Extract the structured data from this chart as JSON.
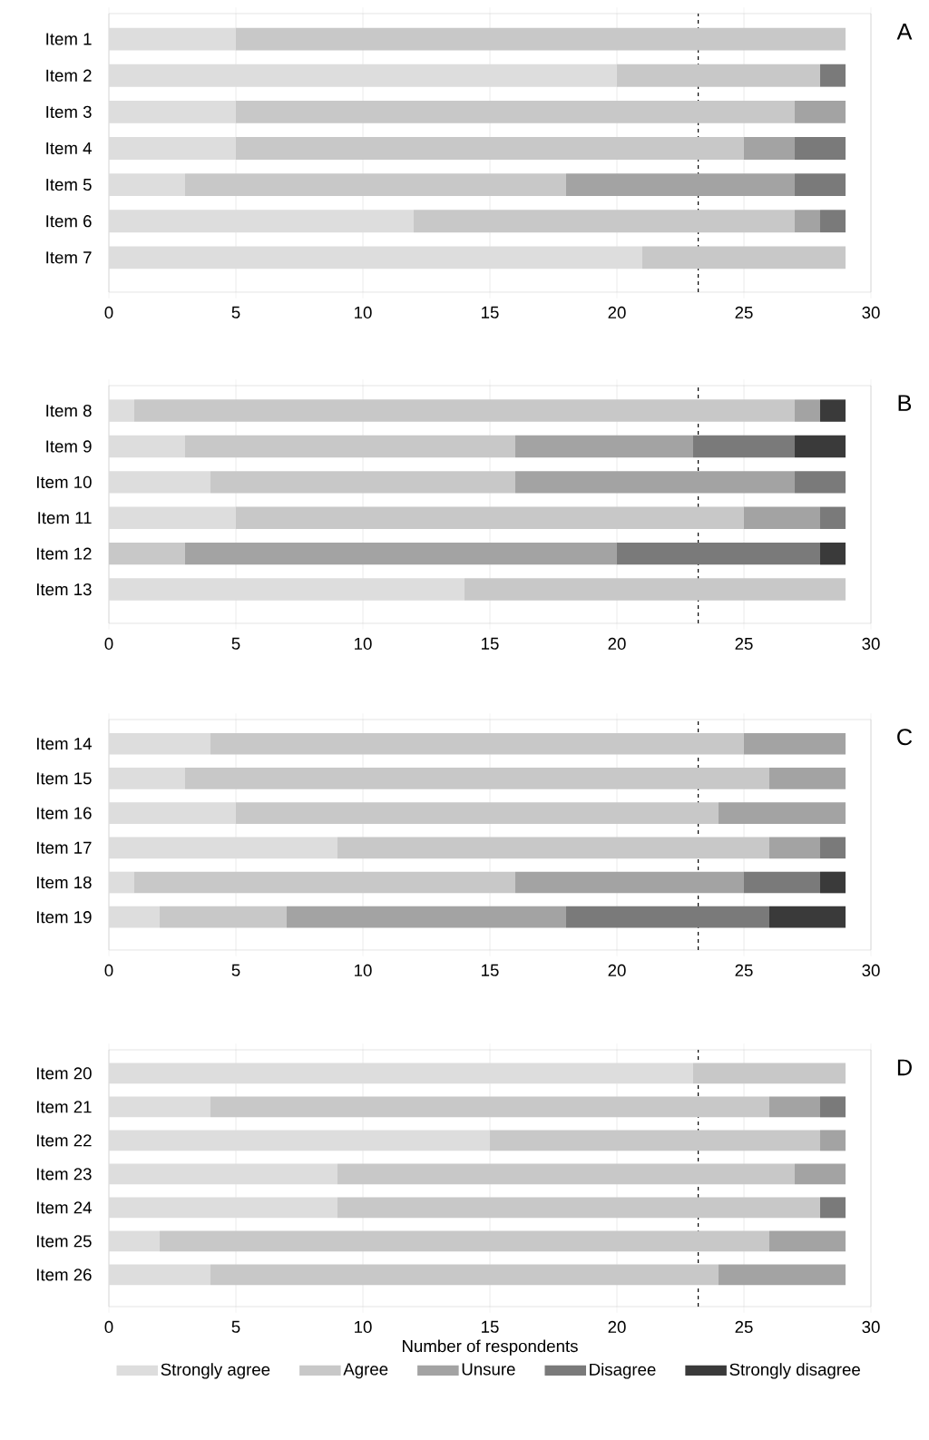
{
  "chart_data": [
    {
      "type": "bar",
      "orientation": "horizontal",
      "stacked": true,
      "categories": [
        "Item 1",
        "Item 2",
        "Item 3",
        "Item 4",
        "Item 5",
        "Item 6",
        "Item 7"
      ],
      "xlim": [
        0,
        30
      ],
      "xticks": [
        0,
        5,
        10,
        15,
        20,
        25,
        30
      ],
      "grid": "x",
      "annotations": [
        "A"
      ],
      "ref_lines": [
        {
          "axis": "x",
          "value": 23.2,
          "color": "#000000",
          "line_style": "dashed"
        }
      ],
      "series": [
        {
          "color": "#dddddd",
          "values": [
            5,
            20,
            5,
            5,
            3,
            12,
            21
          ]
        },
        {
          "color": "#c8c8c8",
          "values": [
            24,
            8,
            22,
            20,
            15,
            15,
            8
          ]
        },
        {
          "color": "#a3a3a3",
          "values": [
            0,
            0,
            2,
            2,
            9,
            1,
            0
          ]
        },
        {
          "color": "#7a7a7a",
          "values": [
            0,
            1,
            0,
            2,
            2,
            1,
            0
          ]
        },
        {
          "color": "#3a3a3a",
          "values": [
            0,
            0,
            0,
            0,
            0,
            0,
            0
          ]
        }
      ]
    },
    {
      "type": "bar",
      "orientation": "horizontal",
      "stacked": true,
      "categories": [
        "Item 8",
        "Item 9",
        "Item 10",
        "Item 11",
        "Item 12",
        "Item 13"
      ],
      "xlim": [
        0,
        30
      ],
      "xticks": [
        0,
        5,
        10,
        15,
        20,
        25,
        30
      ],
      "grid": "x",
      "annotations": [
        "B"
      ],
      "ref_lines": [
        {
          "axis": "x",
          "value": 23.2,
          "color": "#000000",
          "line_style": "dashed"
        }
      ],
      "series": [
        {
          "color": "#dddddd",
          "values": [
            1,
            3,
            4,
            5,
            0,
            14
          ]
        },
        {
          "color": "#c8c8c8",
          "values": [
            26,
            13,
            12,
            20,
            3,
            15
          ]
        },
        {
          "color": "#a3a3a3",
          "values": [
            1,
            7,
            11,
            3,
            17,
            0
          ]
        },
        {
          "color": "#7a7a7a",
          "values": [
            0,
            4,
            2,
            1,
            8,
            0
          ]
        },
        {
          "color": "#3a3a3a",
          "values": [
            1,
            2,
            0,
            0,
            1,
            0
          ]
        }
      ]
    },
    {
      "type": "bar",
      "orientation": "horizontal",
      "stacked": true,
      "categories": [
        "Item 14",
        "Item 15",
        "Item 16",
        "Item 17",
        "Item 18",
        "Item 19"
      ],
      "xlim": [
        0,
        30
      ],
      "xticks": [
        0,
        5,
        10,
        15,
        20,
        25,
        30
      ],
      "grid": "x",
      "annotations": [
        "C"
      ],
      "ref_lines": [
        {
          "axis": "x",
          "value": 23.2,
          "color": "#000000",
          "line_style": "dashed"
        }
      ],
      "series": [
        {
          "color": "#dddddd",
          "values": [
            4,
            3,
            5,
            9,
            1,
            2
          ]
        },
        {
          "color": "#c8c8c8",
          "values": [
            21,
            23,
            19,
            17,
            15,
            5
          ]
        },
        {
          "color": "#a3a3a3",
          "values": [
            4,
            3,
            5,
            2,
            9,
            11
          ]
        },
        {
          "color": "#7a7a7a",
          "values": [
            0,
            0,
            0,
            1,
            3,
            8
          ]
        },
        {
          "color": "#3a3a3a",
          "values": [
            0,
            0,
            0,
            0,
            1,
            3
          ]
        }
      ]
    },
    {
      "type": "bar",
      "orientation": "horizontal",
      "stacked": true,
      "categories": [
        "Item 20",
        "Item 21",
        "Item 22",
        "Item 23",
        "Item 24",
        "Item 25",
        "Item 26"
      ],
      "xlim": [
        0,
        30
      ],
      "xticks": [
        0,
        5,
        10,
        15,
        20,
        25,
        30
      ],
      "grid": "x",
      "annotations": [
        "D"
      ],
      "xlabel": "Number of respondents",
      "legend": "bottom",
      "ref_lines": [
        {
          "axis": "x",
          "value": 23.2,
          "color": "#000000",
          "line_style": "dashed"
        }
      ],
      "series": [
        {
          "name": "Strongly agree",
          "color": "#dddddd",
          "values": [
            23,
            4,
            15,
            9,
            9,
            2,
            4
          ]
        },
        {
          "name": "Agree",
          "color": "#c8c8c8",
          "values": [
            6,
            22,
            13,
            18,
            19,
            24,
            20
          ]
        },
        {
          "name": "Unsure",
          "color": "#a3a3a3",
          "values": [
            0,
            2,
            1,
            2,
            0,
            3,
            5
          ]
        },
        {
          "name": "Disagree",
          "color": "#7a7a7a",
          "values": [
            0,
            1,
            0,
            0,
            1,
            0,
            0
          ]
        },
        {
          "name": "Strongly disagree",
          "color": "#3a3a3a",
          "values": [
            0,
            0,
            0,
            0,
            0,
            0,
            0
          ]
        }
      ]
    }
  ]
}
